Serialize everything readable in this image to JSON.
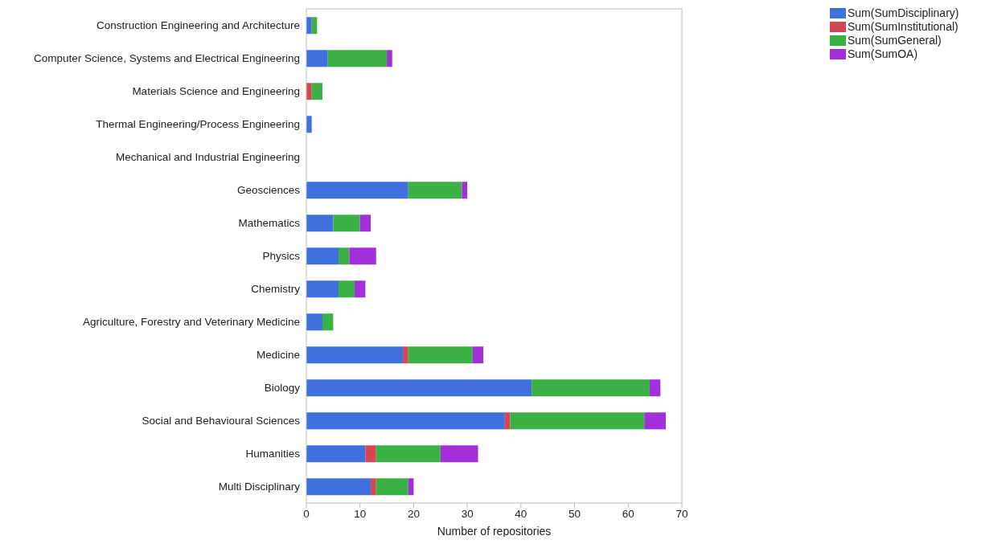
{
  "chart_data": {
    "type": "bar",
    "orientation": "horizontal",
    "stacked": true,
    "xlabel": "Number of repositories",
    "categories": [
      "Construction Engineering and Architecture",
      "Computer Science, Systems and Electrical Engineering",
      "Materials Science and Engineering",
      "Thermal Engineering/Process Engineering",
      "Mechanical and Industrial Engineering",
      "Geosciences",
      "Mathematics",
      "Physics",
      "Chemistry",
      "Agriculture, Forestry and Veterinary Medicine",
      "Medicine",
      "Biology",
      "Social and Behavioural Sciences",
      "Humanities",
      "Multi Disciplinary"
    ],
    "series": [
      {
        "name": "Sum(SumDisciplinary)",
        "color": "#4070dd",
        "values": [
          1,
          4,
          0,
          1,
          0,
          19,
          5,
          6,
          6,
          3,
          18,
          42,
          37,
          11,
          12
        ]
      },
      {
        "name": "Sum(SumInstitutional)",
        "color": "#d64553",
        "values": [
          0,
          0,
          1,
          0,
          0,
          0,
          0,
          0,
          0,
          0,
          1,
          0,
          1,
          2,
          1
        ]
      },
      {
        "name": "Sum(SumGeneral)",
        "color": "#3bb044",
        "values": [
          1,
          11,
          2,
          0,
          0,
          10,
          5,
          2,
          3,
          2,
          12,
          22,
          25,
          12,
          6
        ]
      },
      {
        "name": "Sum(SumOA)",
        "color": "#a22fda",
        "values": [
          0,
          1,
          0,
          0,
          0,
          1,
          2,
          5,
          2,
          0,
          2,
          2,
          4,
          7,
          1
        ]
      }
    ],
    "xlim": [
      0,
      70
    ],
    "xticks": [
      0,
      10,
      20,
      30,
      40,
      50,
      60,
      70
    ],
    "legend": "top right"
  }
}
